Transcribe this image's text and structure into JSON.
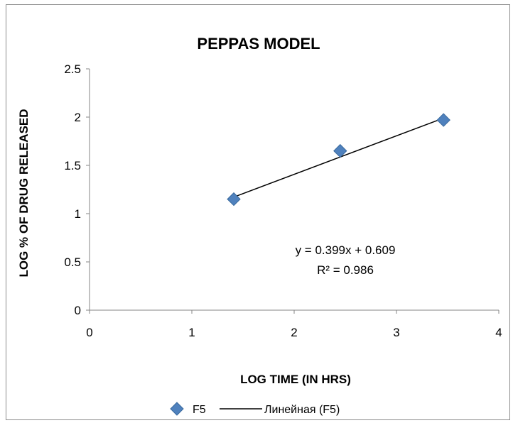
{
  "chart_data": {
    "type": "scatter",
    "title": "PEPPAS MODEL",
    "xlabel": "LOG TIME (IN HRS)",
    "ylabel": "LOG % OF DRUG RELEASED",
    "xlim": [
      0,
      4
    ],
    "ylim": [
      0,
      2.5
    ],
    "x_ticks": [
      0,
      1,
      2,
      3,
      4
    ],
    "y_ticks": [
      0,
      0.5,
      1,
      1.5,
      2,
      2.5
    ],
    "x_tick_labels": [
      "0",
      "1",
      "2",
      "3",
      "4"
    ],
    "y_tick_labels": [
      "0",
      "0.5",
      "1",
      "1.5",
      "2",
      "2.5"
    ],
    "grid": false,
    "series": [
      {
        "name": "F5",
        "marker": "diamond",
        "color": "#4f81bd",
        "x": [
          1.41,
          2.45,
          3.46
        ],
        "y": [
          1.15,
          1.65,
          1.97
        ]
      }
    ],
    "trendline": {
      "name": "Линейная (F5)",
      "type": "linear",
      "slope": 0.399,
      "intercept": 0.609,
      "color": "#000000",
      "equation": "y = 0.399x + 0.609",
      "r_squared": "R² = 0.986"
    },
    "legend": {
      "position": "bottom",
      "entries": [
        "F5",
        "Линейная (F5)"
      ]
    }
  }
}
